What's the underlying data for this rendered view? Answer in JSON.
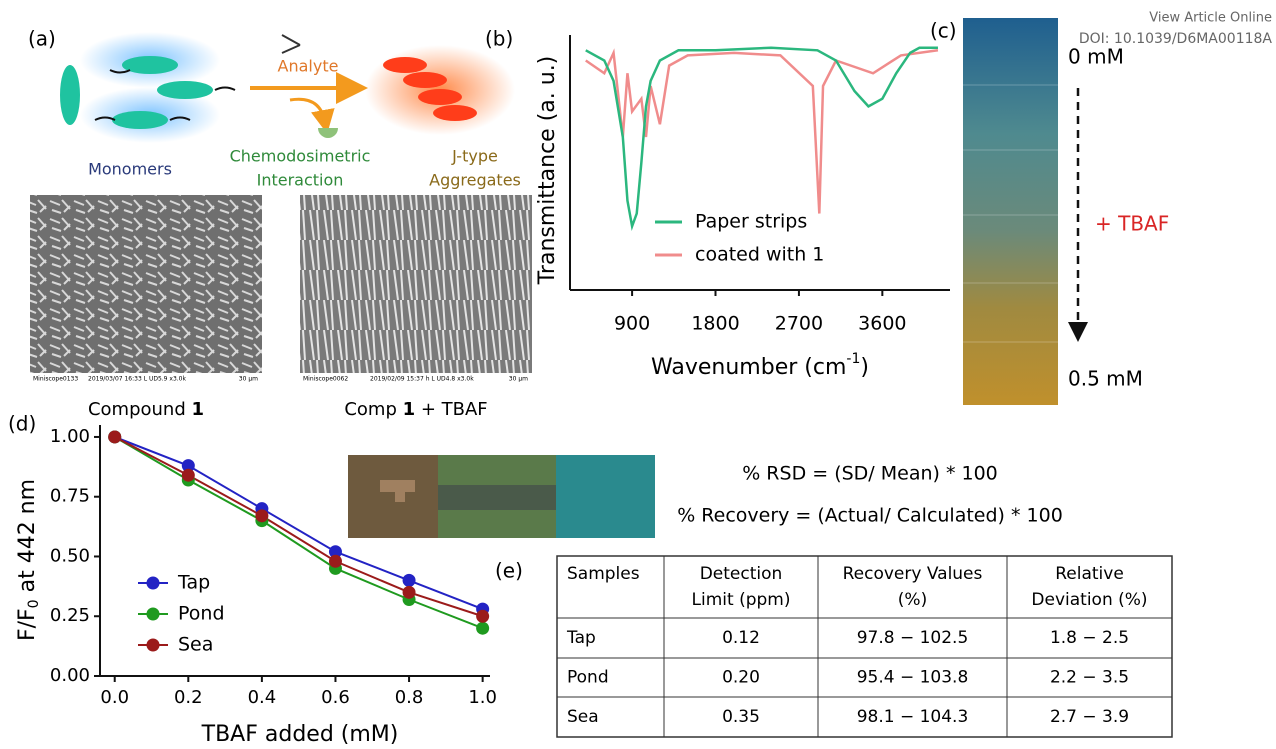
{
  "header": {
    "view_article": "View Article Online",
    "doi": "DOI: 10.1039/D6MA00118A"
  },
  "panel_a": {
    "label": "(a)",
    "analyte": "Analyte",
    "monomers": "Monomers",
    "interaction": [
      "Chemodosimetric",
      "Interaction"
    ],
    "aggregates": [
      "J-type",
      "Aggregates"
    ],
    "sem_left": {
      "bar": [
        "Miniscope0133",
        "2019/03/07 16:33 L UD5.9 x3.0k",
        "30 µm"
      ],
      "caption": [
        "Compound ",
        "1"
      ]
    },
    "sem_right": {
      "bar": [
        "Miniscope0062",
        "2019/02/09 15:37 h L UD4.8 x3.0k",
        "30 µm"
      ],
      "caption": [
        "Comp ",
        "1",
        " + TBAF"
      ]
    }
  },
  "panel_b": {
    "label": "(b)",
    "chart_data": {
      "type": "line",
      "ylabel": "Transmittance (a. u.)",
      "xlabel": [
        "Wavenumber (cm",
        "-1",
        ")"
      ],
      "xlim": [
        230,
        4330
      ],
      "xticks": [
        900,
        1800,
        2700,
        3600
      ],
      "ylim": [
        0,
        1
      ],
      "series": [
        {
          "name": "Paper strips",
          "color": "#2bb77e",
          "x": [
            400,
            600,
            700,
            800,
            850,
            900,
            950,
            1000,
            1050,
            1100,
            1200,
            1400,
            1800,
            2400,
            2900,
            3100,
            3300,
            3450,
            3600,
            3750,
            3900,
            4000,
            4200
          ],
          "values": [
            0.94,
            0.9,
            0.82,
            0.6,
            0.35,
            0.25,
            0.3,
            0.5,
            0.72,
            0.82,
            0.9,
            0.94,
            0.94,
            0.95,
            0.94,
            0.9,
            0.78,
            0.72,
            0.75,
            0.85,
            0.93,
            0.95,
            0.95
          ]
        },
        {
          "name": "coated with 1",
          "color": "#f08c8c",
          "x": [
            400,
            600,
            700,
            800,
            850,
            900,
            1000,
            1050,
            1100,
            1200,
            1300,
            1500,
            2000,
            2500,
            2850,
            2920,
            2960,
            3100,
            3500,
            3800,
            4200
          ],
          "values": [
            0.9,
            0.85,
            0.93,
            0.6,
            0.85,
            0.7,
            0.75,
            0.6,
            0.8,
            0.65,
            0.88,
            0.92,
            0.93,
            0.92,
            0.8,
            0.3,
            0.8,
            0.9,
            0.85,
            0.92,
            0.94
          ]
        }
      ]
    }
  },
  "panel_c": {
    "label": "(c)",
    "top": "0 mM",
    "middle": "+ TBAF",
    "bottom": "0.5 mM"
  },
  "panel_d": {
    "label": "(d)",
    "chart_data": {
      "type": "scatter",
      "ylabel": [
        "F/F",
        "0",
        " at 442 nm"
      ],
      "xlabel": "TBAF added (mM)",
      "x": [
        0,
        0.2,
        0.4,
        0.6,
        0.8,
        1.0
      ],
      "xlim": [
        -0.04,
        1.02
      ],
      "ylim": [
        0,
        1.05
      ],
      "xticks": [
        {
          "value": 0,
          "label": "0.0"
        },
        {
          "value": 0.2,
          "label": "0.2"
        },
        {
          "value": 0.4,
          "label": "0.4"
        },
        {
          "value": 0.6,
          "label": "0.6"
        },
        {
          "value": 0.8,
          "label": "0.8"
        },
        {
          "value": 1,
          "label": "1.0"
        }
      ],
      "yticks": [
        {
          "value": 0,
          "label": "0.00"
        },
        {
          "value": 0.25,
          "label": "0.25"
        },
        {
          "value": 0.5,
          "label": "0.50"
        },
        {
          "value": 0.75,
          "label": "0.75"
        },
        {
          "value": 1,
          "label": "1.00"
        }
      ],
      "series": [
        {
          "name": "Tap",
          "color": "#2323c4",
          "values": [
            1.0,
            0.88,
            0.7,
            0.52,
            0.4,
            0.28
          ]
        },
        {
          "name": "Pond",
          "color": "#1f9a1f",
          "values": [
            1.0,
            0.82,
            0.65,
            0.45,
            0.32,
            0.2
          ]
        },
        {
          "name": "Sea",
          "color": "#9b1b1b",
          "values": [
            1.0,
            0.84,
            0.67,
            0.48,
            0.35,
            0.25
          ]
        }
      ]
    }
  },
  "formulas": [
    "% RSD = (SD/ Mean) * 100",
    "% Recovery = (Actual/ Calculated) * 100"
  ],
  "table": {
    "label": "(e)",
    "header": [
      [
        "Samples"
      ],
      [
        "Detection",
        "Limit (ppm)"
      ],
      [
        "Recovery Values",
        "(%)"
      ],
      [
        "Relative",
        "Deviation (%)"
      ]
    ],
    "rows": [
      [
        "Tap",
        "0.12",
        "97.8 − 102.5",
        "1.8 − 2.5"
      ],
      [
        "Pond",
        "0.20",
        "95.4 − 103.8",
        "2.2 − 3.5"
      ],
      [
        "Sea",
        "0.35",
        "98.1 − 104.3",
        "2.7 − 3.9"
      ]
    ]
  }
}
